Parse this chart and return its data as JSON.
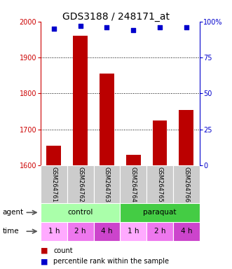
{
  "title": "GDS3188 / 248171_at",
  "samples": [
    "GSM264761",
    "GSM264762",
    "GSM264763",
    "GSM264764",
    "GSM264765",
    "GSM264766"
  ],
  "counts": [
    1655,
    1960,
    1855,
    1630,
    1725,
    1755
  ],
  "percentile_ranks": [
    95,
    97,
    96,
    94,
    96,
    96
  ],
  "ylim_left": [
    1600,
    2000
  ],
  "ylim_right": [
    0,
    100
  ],
  "yticks_left": [
    1600,
    1700,
    1800,
    1900,
    2000
  ],
  "yticks_right": [
    0,
    25,
    50,
    75,
    100
  ],
  "ytick_right_labels": [
    "0",
    "25",
    "50",
    "75",
    "100%"
  ],
  "bar_color": "#bb0000",
  "marker_color": "#0000cc",
  "agent_info": [
    [
      "control",
      0,
      3,
      "#aaffaa"
    ],
    [
      "paraquat",
      3,
      6,
      "#44cc44"
    ]
  ],
  "time_labels": [
    "1 h",
    "2 h",
    "4 h",
    "1 h",
    "2 h",
    "4 h"
  ],
  "time_colors": [
    "#ffaaff",
    "#ee77ee",
    "#cc44cc",
    "#ffaaff",
    "#ee77ee",
    "#cc44cc"
  ],
  "sample_bg_color": "#cccccc",
  "left_axis_color": "#cc0000",
  "right_axis_color": "#0000cc",
  "grid_color": "black",
  "grid_linestyle": ":",
  "grid_linewidth": 0.7,
  "title_fontsize": 10,
  "tick_fontsize": 7,
  "sample_fontsize": 6,
  "row_fontsize": 7.5,
  "legend_fontsize": 7
}
